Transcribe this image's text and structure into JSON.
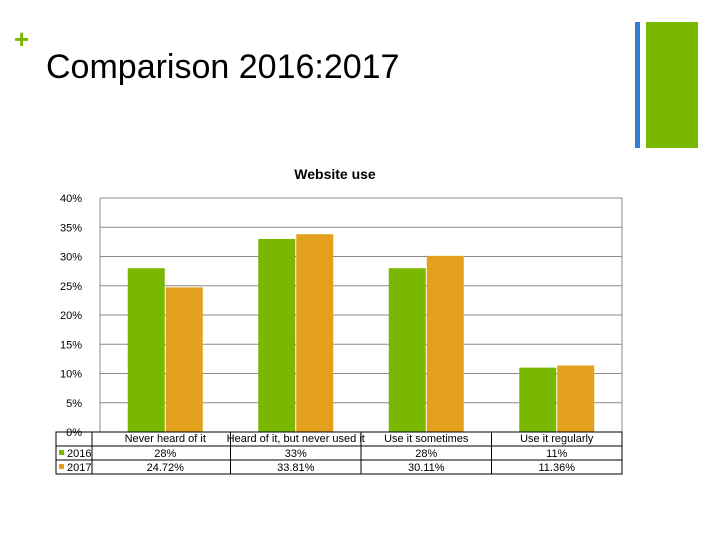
{
  "slide": {
    "plus": "+",
    "title": "Comparison 2016:2017"
  },
  "colors": {
    "series_2016": "#7ab800",
    "series_2017": "#e3a01d",
    "accent_blue": "#2f7fd6"
  },
  "chart_data": {
    "type": "bar",
    "title": "Website use",
    "xlabel": "",
    "ylabel": "",
    "ylim": [
      0,
      40
    ],
    "y_ticks": [
      "0%",
      "5%",
      "10%",
      "15%",
      "20%",
      "25%",
      "30%",
      "35%",
      "40%"
    ],
    "grid": true,
    "legend": "data-table",
    "categories": [
      "Never heard of it",
      "Heard of it, but never used it",
      "Use it sometimes",
      "Use it regularly"
    ],
    "series": [
      {
        "name": "2016",
        "values": [
          28,
          33,
          28,
          11
        ],
        "labels": [
          "28%",
          "33%",
          "28%",
          "11%"
        ]
      },
      {
        "name": "2017",
        "values": [
          24.72,
          33.81,
          30.11,
          11.36
        ],
        "labels": [
          "24.72%",
          "33.81%",
          "30.11%",
          "11.36%"
        ]
      }
    ]
  }
}
